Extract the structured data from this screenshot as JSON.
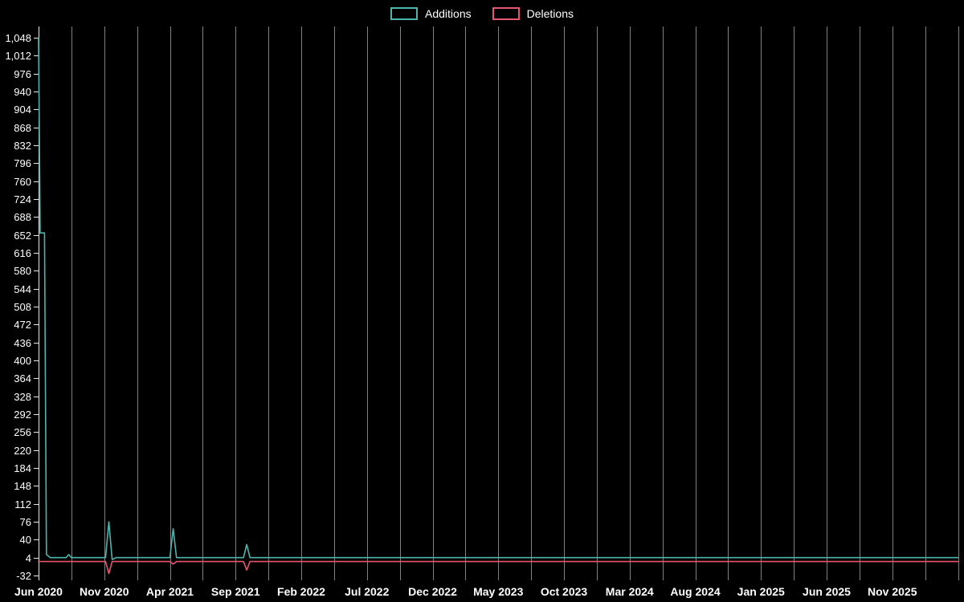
{
  "legend": {
    "items": [
      {
        "label": "Additions",
        "color": "#4fb3ad"
      },
      {
        "label": "Deletions",
        "color": "#e4566e"
      }
    ]
  },
  "colors": {
    "background": "#000000",
    "text": "#ffffff",
    "axis": "#e8e8e8",
    "gridline": "rgba(255,255,255,0.5)"
  },
  "chart_data": {
    "type": "line",
    "title": "",
    "legend_position": "top-center",
    "grid": "vertical-only",
    "x_unit": "months since Jun 2020 (weekly commit activity)",
    "x_range": [
      0,
      70
    ],
    "y_range": [
      -32,
      1048
    ],
    "y_tick_step": 36,
    "grid_step_months": 2.5,
    "y_ticks": [
      {
        "v": 1048,
        "label": "1,048"
      },
      {
        "v": 1012,
        "label": "1,012"
      },
      {
        "v": 976,
        "label": "976"
      },
      {
        "v": 940,
        "label": "940"
      },
      {
        "v": 904,
        "label": "904"
      },
      {
        "v": 868,
        "label": "868"
      },
      {
        "v": 832,
        "label": "832"
      },
      {
        "v": 796,
        "label": "796"
      },
      {
        "v": 760,
        "label": "760"
      },
      {
        "v": 724,
        "label": "724"
      },
      {
        "v": 688,
        "label": "688"
      },
      {
        "v": 652,
        "label": "652"
      },
      {
        "v": 616,
        "label": "616"
      },
      {
        "v": 580,
        "label": "580"
      },
      {
        "v": 544,
        "label": "544"
      },
      {
        "v": 508,
        "label": "508"
      },
      {
        "v": 472,
        "label": "472"
      },
      {
        "v": 436,
        "label": "436"
      },
      {
        "v": 400,
        "label": "400"
      },
      {
        "v": 364,
        "label": "364"
      },
      {
        "v": 328,
        "label": "328"
      },
      {
        "v": 292,
        "label": "292"
      },
      {
        "v": 256,
        "label": "256"
      },
      {
        "v": 220,
        "label": "220"
      },
      {
        "v": 184,
        "label": "184"
      },
      {
        "v": 148,
        "label": "148"
      },
      {
        "v": 112,
        "label": "112"
      },
      {
        "v": 76,
        "label": "76"
      },
      {
        "v": 40,
        "label": "40"
      },
      {
        "v": 4,
        "label": "4"
      },
      {
        "v": -32,
        "label": "-32"
      }
    ],
    "x_ticks": [
      {
        "m": 0,
        "label": "Jun 2020"
      },
      {
        "m": 5,
        "label": "Nov 2020"
      },
      {
        "m": 10,
        "label": "Apr 2021"
      },
      {
        "m": 15,
        "label": "Sep 2021"
      },
      {
        "m": 20,
        "label": "Feb 2022"
      },
      {
        "m": 25,
        "label": "Jul 2022"
      },
      {
        "m": 30,
        "label": "Dec 2022"
      },
      {
        "m": 35,
        "label": "May 2023"
      },
      {
        "m": 40,
        "label": "Oct 2023"
      },
      {
        "m": 45,
        "label": "Mar 2024"
      },
      {
        "m": 50,
        "label": "Aug 2024"
      },
      {
        "m": 55,
        "label": "Jan 2025"
      },
      {
        "m": 60,
        "label": "Jun 2025"
      },
      {
        "m": 65,
        "label": "Nov 2025"
      }
    ],
    "series": [
      {
        "name": "Additions",
        "color": "#4fb3ad",
        "points": [
          [
            0,
            1048
          ],
          [
            0.12,
            656
          ],
          [
            0.45,
            656
          ],
          [
            0.6,
            10
          ],
          [
            0.9,
            4
          ],
          [
            2.1,
            4
          ],
          [
            2.3,
            10
          ],
          [
            2.5,
            4
          ],
          [
            5.1,
            4
          ],
          [
            5.35,
            76
          ],
          [
            5.6,
            0
          ],
          [
            5.9,
            4
          ],
          [
            10.0,
            4
          ],
          [
            10.25,
            62
          ],
          [
            10.5,
            4
          ],
          [
            15.6,
            4
          ],
          [
            15.85,
            30
          ],
          [
            16.1,
            4
          ],
          [
            70,
            4
          ]
        ]
      },
      {
        "name": "Deletions",
        "color": "#e4566e",
        "points": [
          [
            0,
            -4
          ],
          [
            5.1,
            -4
          ],
          [
            5.35,
            -28
          ],
          [
            5.6,
            -4
          ],
          [
            10.0,
            -4
          ],
          [
            10.25,
            -9
          ],
          [
            10.5,
            -4
          ],
          [
            15.6,
            -4
          ],
          [
            15.85,
            -21
          ],
          [
            16.1,
            -4
          ],
          [
            70,
            -4
          ]
        ]
      }
    ]
  }
}
